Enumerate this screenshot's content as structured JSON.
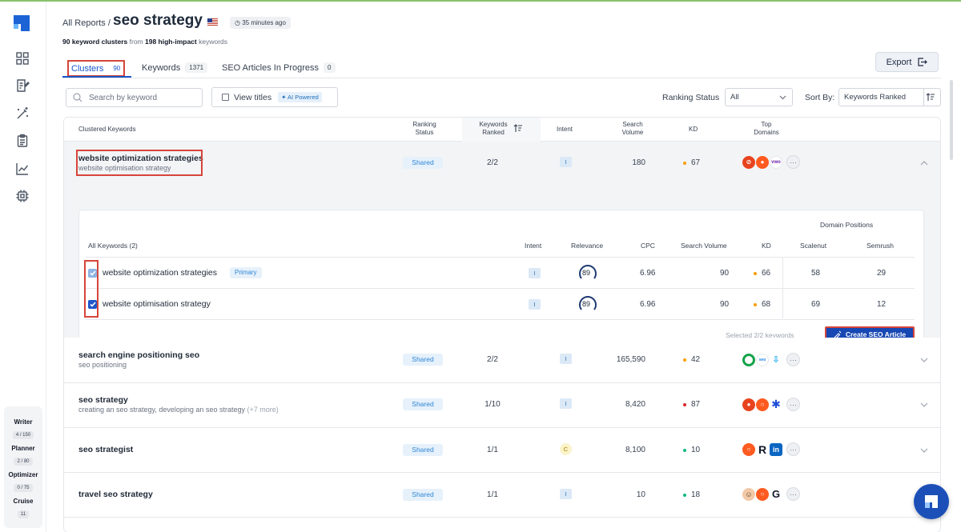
{
  "breadcrumb": "All Reports /",
  "report_title": "seo strategy",
  "time_ago": "35 minutes ago",
  "summary": {
    "clusters": "90 keyword clusters",
    "from": "from",
    "impact": "198 high-impact",
    "suffix": "keywords"
  },
  "tabs": [
    {
      "label": "Clusters",
      "count": "90"
    },
    {
      "label": "Keywords",
      "count": "1371"
    },
    {
      "label": "SEO Articles In Progress",
      "count": "0"
    }
  ],
  "export_label": "Export",
  "search": {
    "placeholder": "Search by keyword"
  },
  "view_titles": {
    "label": "View titles",
    "badge": "AI Powered"
  },
  "ranking_status": {
    "label": "Ranking Status",
    "value": "All"
  },
  "sort_by": {
    "label": "Sort By:",
    "value": "Keywords Ranked"
  },
  "columns": {
    "clustered": "Clustered Keywords",
    "ranking_status_1": "Ranking",
    "ranking_status_2": "Status",
    "kw_ranked_1": "Keywords",
    "kw_ranked_2": "Ranked",
    "intent": "Intent",
    "volume_1": "Search",
    "volume_2": "Volume",
    "kd": "KD",
    "domains_1": "Top",
    "domains_2": "Domains"
  },
  "rows": [
    {
      "title": "website optimization strategies",
      "sub": "website optimisation strategy",
      "status": "Shared",
      "ranked": "2/2",
      "intent": "I",
      "volume": "180",
      "kd": "67",
      "kd_color": "#f59e0b"
    },
    {
      "title": "search engine positioning seo",
      "sub": "seo positioning",
      "status": "Shared",
      "ranked": "2/2",
      "intent": "I",
      "volume": "165,590",
      "kd": "42",
      "kd_color": "#f59e0b"
    },
    {
      "title": "seo strategy",
      "sub": "creating an seo strategy, developing an seo strategy",
      "more": "(+7 more)",
      "status": "Shared",
      "ranked": "1/10",
      "intent": "I",
      "volume": "8,420",
      "kd": "87",
      "kd_color": "#dc2626"
    },
    {
      "title": "seo strategist",
      "status": "Shared",
      "ranked": "1/1",
      "intent": "C",
      "volume": "8,100",
      "kd": "10",
      "kd_color": "#10b981"
    },
    {
      "title": "travel seo strategy",
      "status": "Shared",
      "ranked": "1/1",
      "intent": "I",
      "volume": "10",
      "kd": "18",
      "kd_color": "#10b981"
    }
  ],
  "inner": {
    "all_keywords": "All Keywords (2)",
    "domain_positions": "Domain Positions",
    "h_intent": "Intent",
    "h_relevance": "Relevance",
    "h_cpc": "CPC",
    "h_volume": "Search Volume",
    "h_kd": "KD",
    "h_scalenut": "Scalenut",
    "h_semrush": "Semrush",
    "keywords": [
      {
        "kw": "website optimization strategies",
        "primary": "Primary",
        "intent": "I",
        "relevance": "89",
        "cpc": "6.96",
        "volume": "90",
        "kd": "66",
        "scalenut": "58",
        "semrush": "29"
      },
      {
        "kw": "website optimisation strategy",
        "intent": "I",
        "relevance": "89",
        "cpc": "6.96",
        "volume": "90",
        "kd": "68",
        "scalenut": "69",
        "semrush": "12"
      }
    ],
    "selected": "Selected 2/2 keywords",
    "create_label": "Create SEO Article"
  },
  "usage": [
    {
      "label": "Writer",
      "count": "4 / 150"
    },
    {
      "label": "Planner",
      "count": "2 / 80"
    },
    {
      "label": "Optimizer",
      "count": "0 / 75"
    },
    {
      "label": "Cruise",
      "count": "11"
    }
  ],
  "domain_more": "···",
  "colors": {
    "brand": "#1c50b8",
    "highlight": "#d6453a",
    "shared_bg": "#e6f1fb"
  }
}
